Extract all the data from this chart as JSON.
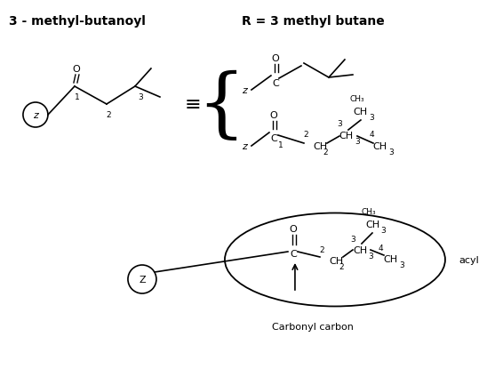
{
  "title1": "3 - methyl-butanoyl",
  "title2": "R = 3 methyl butane",
  "label_acyl": "acyl",
  "label_carbonyl": "Carbonyl carbon",
  "bg_color": "#ffffff",
  "text_color": "#000000",
  "fs_title": 10,
  "fs_body": 8,
  "fs_sub": 6.5
}
